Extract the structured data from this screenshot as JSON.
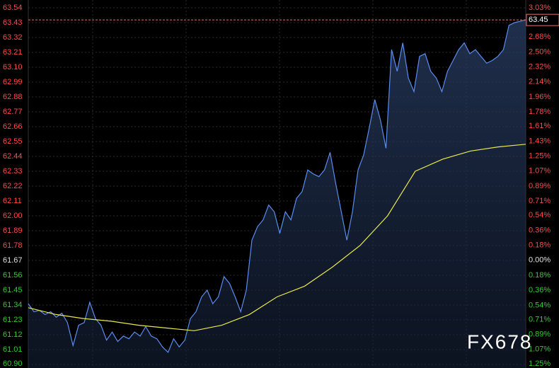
{
  "chart_data": {
    "type": "line",
    "ylim": [
      60.9,
      63.54
    ],
    "yticks": [
      63.54,
      63.43,
      63.32,
      63.21,
      {
        "value": 63.1,
        "label": "63.10"
      },
      62.99,
      62.88,
      62.77,
      62.66,
      62.55,
      62.44,
      62.33,
      62.22,
      62.11,
      {
        "value": 62.0,
        "label": "62.00"
      },
      61.89,
      61.78,
      61.67,
      61.56,
      61.45,
      61.34,
      61.23,
      61.12,
      61.01,
      {
        "value": 60.9,
        "label": "60.90"
      }
    ],
    "y2lim": [
      -1.25,
      3.03
    ],
    "y2ticks": [
      {
        "value": 3.03,
        "label": "3.03%"
      },
      {
        "value": 2.68,
        "label": "2.68%"
      },
      {
        "value": 2.5,
        "label": "2.50%"
      },
      {
        "value": 2.32,
        "label": "2.32%"
      },
      {
        "value": 2.14,
        "label": "2.14%"
      },
      {
        "value": 1.96,
        "label": "1.96%"
      },
      {
        "value": 1.78,
        "label": "1.78%"
      },
      {
        "value": 1.61,
        "label": "1.61%"
      },
      {
        "value": 1.43,
        "label": "1.43%"
      },
      {
        "value": 1.25,
        "label": "1.25%"
      },
      {
        "value": 1.07,
        "label": "1.07%"
      },
      {
        "value": 0.89,
        "label": "0.89%"
      },
      {
        "value": 0.71,
        "label": "0.71%"
      },
      {
        "value": 0.54,
        "label": "0.54%"
      },
      {
        "value": 0.36,
        "label": "0.36%"
      },
      {
        "value": 0.18,
        "label": "0.18%"
      },
      {
        "value": 0,
        "label": "0.00%"
      },
      {
        "value": -0.18,
        "label": "0.18%"
      },
      {
        "value": -0.36,
        "label": "0.36%"
      },
      {
        "value": -0.54,
        "label": "0.54%"
      },
      {
        "value": -0.71,
        "label": "0.71%"
      },
      {
        "value": -0.89,
        "label": "0.89%"
      },
      {
        "value": -1.07,
        "label": "1.07%"
      },
      {
        "value": -1.25,
        "label": "1.25%"
      }
    ],
    "grid": true,
    "up_color": "#ff4a4a",
    "down_color": "#33cc33",
    "flat_color": "#e0e0e0",
    "last_value": 63.45,
    "watermark": "FX678",
    "series": [
      {
        "color": "#5b8cf0",
        "values": [
          61.35,
          61.29,
          61.3,
          61.27,
          61.29,
          61.25,
          61.28,
          61.21,
          61.04,
          61.19,
          61.21,
          61.36,
          61.24,
          61.19,
          61.08,
          61.14,
          61.07,
          61.11,
          61.09,
          61.14,
          61.11,
          61.18,
          61.11,
          61.09,
          61.03,
          60.99,
          61.09,
          61.03,
          61.08,
          61.24,
          61.29,
          61.4,
          61.45,
          61.35,
          61.4,
          61.55,
          61.5,
          61.4,
          61.29,
          61.45,
          61.82,
          61.92,
          61.97,
          62.08,
          62.03,
          61.87,
          62.03,
          61.97,
          62.13,
          62.18,
          62.34,
          62.31,
          62.29,
          62.34,
          62.47,
          62.24,
          62.03,
          61.82,
          62.03,
          62.34,
          62.45,
          62.65,
          62.86,
          62.71,
          62.5,
          63.23,
          63.07,
          63.28,
          63.02,
          62.92,
          63.18,
          63.2,
          63.07,
          63.02,
          62.92,
          63.07,
          63.15,
          63.23,
          63.28,
          63.2,
          63.23,
          63.18,
          63.13,
          63.15,
          63.18,
          63.23,
          63.41,
          63.43,
          63.44,
          63.45
        ]
      },
      {
        "color": "#e8e84a",
        "values": [
          61.32,
          61.27,
          61.24,
          61.22,
          61.19,
          61.17,
          61.15,
          61.19,
          61.27,
          61.4,
          61.48,
          61.62,
          61.78,
          62.0,
          62.33,
          62.42,
          62.48,
          62.51,
          62.53
        ]
      }
    ]
  }
}
